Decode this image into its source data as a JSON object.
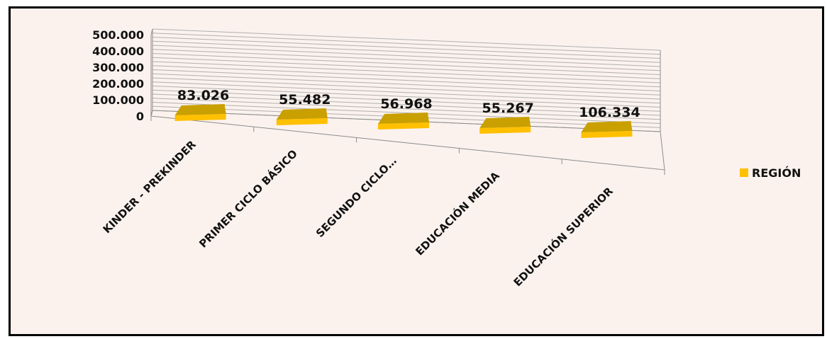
{
  "chart_data": {
    "type": "bar",
    "categories": [
      "KINDER - PREKINDER",
      "PRIMER CICLO BÁSICO",
      "SEGUNDO CICLO…",
      "EDUCACIÓN MEDIA",
      "EDUCACIÓN SUPERIOR"
    ],
    "series": [
      {
        "name": "REGIÓN",
        "values": [
          83026,
          55482,
          56968,
          55267,
          106334
        ],
        "labels": [
          "83.026",
          "55.482",
          "56.968",
          "55.267",
          "106.334"
        ]
      }
    ],
    "yticks": [
      "0",
      "100.000",
      "200.000",
      "300.000",
      "400.000",
      "500.000"
    ],
    "ylim": [
      0,
      500000
    ],
    "grid": true,
    "legend": "right",
    "colors": {
      "bar": "#ffc000",
      "bar_top": "#c9a000",
      "bar_side": "#a88600",
      "background": "#fbf2ee",
      "grid": "#b0b0b0"
    }
  }
}
